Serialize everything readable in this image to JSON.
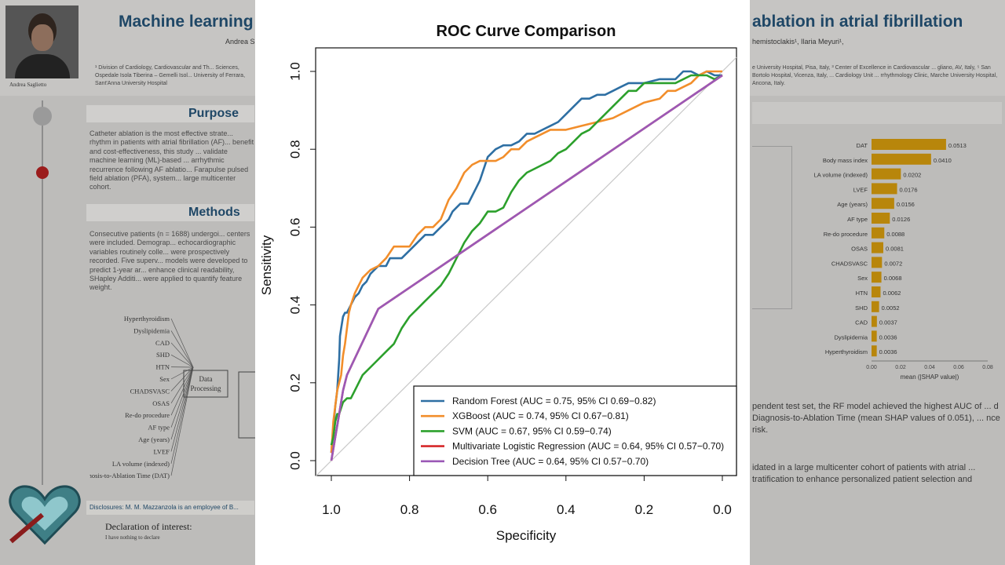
{
  "poster": {
    "title_left": "Machine learning",
    "title_right": "ablation in atrial fibrillation",
    "authors_left": "Andrea S",
    "authors_right": "hemistoclakis¹, Ilaria Meyuri¹,",
    "affiliations_left": "¹ Division of Cardiology, Cardiovascular and Th... Sciences, Ospedale Isola Tiberina – Gemelli Isol... University of Ferrara, Sant'Anna University Hospital",
    "affiliations_right": "e University Hospital, Pisa, Italy, ³ Center of Excellence in Cardiovascular ... gliano, AV, Italy, ⁵ San Bortolo Hospital, Vicenza, Italy, ... Cardiology Unit ... rrhythmology Clinic, Marche University Hospital, Ancona, Italy.",
    "photo_caption": "Andrea Saglietto",
    "purpose_heading": "Purpose",
    "purpose_text": "Catheter ablation is the most effective strate... rhythm in patients with atrial fibrillation (AF)... benefit and cost-effectiveness, this study ... validate machine learning (ML)-based ... arrhythmic recurrence following AF ablatio... Farapulse pulsed field ablation (PFA), system... large multicenter cohort.",
    "methods_heading": "Methods",
    "methods_text": "Consecutive patients (n = 1688) undergoi... centers were included. Demograp... echocardiographic variables routinely colle... were prospectively recorded. Five superv... models were developed to predict 1-year ar... enhance clinical readability, SHapley Additi... were applied to quantify feature weight.",
    "diagram_features": [
      "Hyperthyroidism",
      "Dyslipidemia",
      "CAD",
      "SHD",
      "HTN",
      "Sex",
      "CHADSVASC",
      "OSAS",
      "Re-do procedure",
      "AF type",
      "Age (years)",
      "LVEF",
      "LA volume (indexed)",
      "Diagnosis-to-Ablation Time (DAT)"
    ],
    "diagram_box": "Data Processing",
    "disclosures": "Disclosures: M. M. Mazzanzola is an employee of B...",
    "declaration": "Declaration of interest:",
    "declaration_sub": "I have nothing to declare",
    "results_text_1": "pendent test set, the RF model achieved the highest AUC of ... d Diagnosis-to-Ablation Time (mean SHAP values of 0.051), ... nce risk.",
    "results_text_2": "idated in a large multicenter cohort of patients with atrial ... tratification to enhance personalized patient selection and",
    "shap": {
      "features": [
        "DAT",
        "Body mass index",
        "LA volume (indexed)",
        "LVEF",
        "Age (years)",
        "AF type",
        "Re-do procedure",
        "OSAS",
        "CHADSVASC",
        "Sex",
        "HTN",
        "SHD",
        "CAD",
        "Dyslipidemia",
        "Hyperthyroidism"
      ],
      "values": [
        0.0513,
        0.041,
        0.0202,
        0.0176,
        0.0156,
        0.0126,
        0.0088,
        0.0081,
        0.0072,
        0.0068,
        0.0062,
        0.0052,
        0.0037,
        0.0036,
        0.0036
      ],
      "value_labels": [
        "0.0513",
        "0.0410",
        "0.0202",
        "0.0176",
        "0.0156",
        "0.0126",
        "0.0088",
        "0.0081",
        "0.0072",
        "0.0068",
        "0.0062",
        "0.0052",
        "0.0037",
        "0.0036",
        "0.0036"
      ],
      "xticks": [
        "0.00",
        "0.02",
        "0.04",
        "0.06",
        "0.08"
      ],
      "xlabel": "mean (|SHAP value|)",
      "bar_color": "#b8860b"
    }
  },
  "chart_data": {
    "type": "line",
    "title": "ROC Curve Comparison",
    "xlabel": "Specificity",
    "ylabel": "Sensitivity",
    "x_reversed": true,
    "xlim": [
      1.0,
      0.0
    ],
    "ylim": [
      0.0,
      1.0
    ],
    "xticks": [
      "1.0",
      "0.8",
      "0.6",
      "0.4",
      "0.2",
      "0.0"
    ],
    "yticks": [
      "0.0",
      "0.2",
      "0.4",
      "0.6",
      "0.8",
      "1.0"
    ],
    "reference_line": true,
    "legend_position": "bottom-right",
    "series": [
      {
        "name": "Random Forest (AUC = 0.75, 95% CI 0.69−0.82)",
        "color": "#2e6fa3",
        "x": [
          1.0,
          0.995,
          0.99,
          0.985,
          0.98,
          0.978,
          0.975,
          0.97,
          0.965,
          0.96,
          0.95,
          0.94,
          0.93,
          0.92,
          0.91,
          0.9,
          0.88,
          0.86,
          0.85,
          0.84,
          0.82,
          0.8,
          0.78,
          0.76,
          0.74,
          0.72,
          0.7,
          0.69,
          0.67,
          0.65,
          0.63,
          0.62,
          0.6,
          0.58,
          0.56,
          0.54,
          0.52,
          0.5,
          0.48,
          0.46,
          0.44,
          0.42,
          0.4,
          0.38,
          0.36,
          0.34,
          0.32,
          0.3,
          0.28,
          0.26,
          0.24,
          0.2,
          0.16,
          0.12,
          0.1,
          0.08,
          0.06,
          0.04,
          0.02,
          0.0
        ],
        "y": [
          0.02,
          0.08,
          0.14,
          0.18,
          0.26,
          0.32,
          0.34,
          0.37,
          0.38,
          0.38,
          0.4,
          0.42,
          0.43,
          0.45,
          0.46,
          0.48,
          0.5,
          0.5,
          0.52,
          0.52,
          0.52,
          0.54,
          0.56,
          0.58,
          0.58,
          0.6,
          0.62,
          0.64,
          0.66,
          0.66,
          0.7,
          0.72,
          0.78,
          0.8,
          0.81,
          0.81,
          0.82,
          0.84,
          0.84,
          0.85,
          0.86,
          0.87,
          0.89,
          0.91,
          0.93,
          0.93,
          0.94,
          0.94,
          0.95,
          0.96,
          0.97,
          0.97,
          0.98,
          0.98,
          1.0,
          1.0,
          0.99,
          1.0,
          0.99,
          0.99
        ]
      },
      {
        "name": "XGBoost (AUC = 0.74, 95% CI 0.67−0.81)",
        "color": "#f28e2b",
        "x": [
          1.0,
          0.995,
          0.99,
          0.985,
          0.98,
          0.975,
          0.97,
          0.965,
          0.96,
          0.955,
          0.95,
          0.94,
          0.92,
          0.9,
          0.88,
          0.86,
          0.84,
          0.82,
          0.8,
          0.78,
          0.76,
          0.74,
          0.72,
          0.7,
          0.68,
          0.66,
          0.64,
          0.62,
          0.6,
          0.58,
          0.56,
          0.54,
          0.52,
          0.5,
          0.48,
          0.44,
          0.4,
          0.36,
          0.32,
          0.28,
          0.24,
          0.2,
          0.16,
          0.14,
          0.12,
          0.1,
          0.08,
          0.06,
          0.04,
          0.02,
          0.0
        ],
        "y": [
          0.02,
          0.1,
          0.14,
          0.18,
          0.2,
          0.22,
          0.27,
          0.3,
          0.34,
          0.38,
          0.4,
          0.43,
          0.47,
          0.49,
          0.5,
          0.52,
          0.55,
          0.55,
          0.55,
          0.58,
          0.6,
          0.6,
          0.62,
          0.67,
          0.7,
          0.74,
          0.76,
          0.77,
          0.77,
          0.77,
          0.78,
          0.8,
          0.8,
          0.82,
          0.83,
          0.85,
          0.85,
          0.86,
          0.87,
          0.88,
          0.9,
          0.92,
          0.93,
          0.95,
          0.95,
          0.96,
          0.97,
          0.99,
          1.0,
          1.0,
          1.0
        ]
      },
      {
        "name": "SVM (AUC = 0.67, 95% CI 0.59−0.74)",
        "color": "#2ca02c",
        "x": [
          1.0,
          0.995,
          0.99,
          0.985,
          0.98,
          0.97,
          0.96,
          0.95,
          0.94,
          0.92,
          0.9,
          0.88,
          0.86,
          0.84,
          0.82,
          0.8,
          0.78,
          0.76,
          0.74,
          0.72,
          0.7,
          0.68,
          0.66,
          0.64,
          0.62,
          0.6,
          0.58,
          0.56,
          0.54,
          0.52,
          0.5,
          0.48,
          0.46,
          0.44,
          0.42,
          0.4,
          0.38,
          0.36,
          0.34,
          0.32,
          0.3,
          0.28,
          0.26,
          0.24,
          0.22,
          0.2,
          0.18,
          0.16,
          0.12,
          0.08,
          0.06,
          0.04,
          0.02,
          0.0
        ],
        "y": [
          0.04,
          0.06,
          0.1,
          0.12,
          0.12,
          0.15,
          0.16,
          0.16,
          0.18,
          0.22,
          0.24,
          0.26,
          0.28,
          0.3,
          0.34,
          0.37,
          0.39,
          0.41,
          0.43,
          0.45,
          0.48,
          0.52,
          0.56,
          0.59,
          0.61,
          0.64,
          0.64,
          0.65,
          0.69,
          0.72,
          0.74,
          0.75,
          0.76,
          0.77,
          0.79,
          0.8,
          0.82,
          0.84,
          0.85,
          0.87,
          0.89,
          0.91,
          0.93,
          0.95,
          0.95,
          0.97,
          0.97,
          0.97,
          0.97,
          0.99,
          0.99,
          0.99,
          0.98,
          0.99
        ]
      },
      {
        "name": "Multivariate Logistic Regression (AUC = 0.64, 95% CI 0.57−0.70)",
        "color": "#d62728",
        "x": [
          1.0,
          0.99,
          0.98,
          0.97,
          0.96,
          0.88,
          0.0
        ],
        "y": [
          0.0,
          0.06,
          0.12,
          0.18,
          0.22,
          0.39,
          0.99
        ]
      },
      {
        "name": "Decision Tree (AUC = 0.64, 95% CI 0.57−0.70)",
        "color": "#9b59b6",
        "x": [
          1.0,
          0.99,
          0.98,
          0.97,
          0.96,
          0.88,
          0.0
        ],
        "y": [
          0.0,
          0.06,
          0.12,
          0.18,
          0.22,
          0.39,
          0.99
        ]
      }
    ]
  }
}
